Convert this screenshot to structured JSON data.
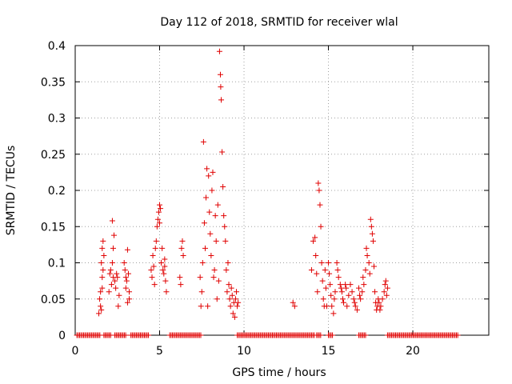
{
  "colors": {
    "series": "#e00000",
    "grid": "#a0a0a0",
    "axis": "#000000"
  },
  "chart_data": {
    "type": "scatter",
    "title": "Day 112 of 2018, SRMTID for receiver wlal",
    "xlabel": "GPS time / hours",
    "ylabel": "SRMTID / TECUs",
    "xlim": [
      0,
      24.5
    ],
    "ylim": [
      0,
      0.4
    ],
    "xticks": [
      0,
      5,
      10,
      15,
      20
    ],
    "xtick_labels": [
      "0",
      "5",
      "10",
      "15",
      "20"
    ],
    "yticks": [
      0,
      0.05,
      0.1,
      0.15,
      0.2,
      0.25,
      0.3,
      0.35,
      0.4
    ],
    "ytick_labels": [
      "0",
      "0.05",
      "0.1",
      "0.15",
      "0.2",
      "0.25",
      "0.3",
      "0.35",
      "0.4"
    ],
    "grid": true,
    "marker": "+",
    "series": [
      {
        "name": "SRMTID",
        "points": [
          [
            1.4,
            0.03
          ],
          [
            1.45,
            0.05
          ],
          [
            1.5,
            0.04
          ],
          [
            1.55,
            0.035
          ],
          [
            1.5,
            0.06
          ],
          [
            1.6,
            0.08
          ],
          [
            1.55,
            0.1
          ],
          [
            1.6,
            0.12
          ],
          [
            1.65,
            0.13
          ],
          [
            1.65,
            0.09
          ],
          [
            1.7,
            0.11
          ],
          [
            1.6,
            0.065
          ],
          [
            2.0,
            0.06
          ],
          [
            2.05,
            0.085
          ],
          [
            2.1,
            0.09
          ],
          [
            2.15,
            0.07
          ],
          [
            2.2,
            0.1
          ],
          [
            2.25,
            0.12
          ],
          [
            2.2,
            0.158
          ],
          [
            2.3,
            0.138
          ],
          [
            2.25,
            0.08
          ],
          [
            2.35,
            0.075
          ],
          [
            2.4,
            0.065
          ],
          [
            2.45,
            0.085
          ],
          [
            2.5,
            0.08
          ],
          [
            2.55,
            0.04
          ],
          [
            2.6,
            0.055
          ],
          [
            2.9,
            0.1
          ],
          [
            2.95,
            0.09
          ],
          [
            3.0,
            0.08
          ],
          [
            3.05,
            0.075
          ],
          [
            3.1,
            0.118
          ],
          [
            3.0,
            0.065
          ],
          [
            3.15,
            0.085
          ],
          [
            3.2,
            0.06
          ],
          [
            3.1,
            0.045
          ],
          [
            3.2,
            0.05
          ],
          [
            4.5,
            0.09
          ],
          [
            4.55,
            0.08
          ],
          [
            4.6,
            0.11
          ],
          [
            4.65,
            0.095
          ],
          [
            4.7,
            0.07
          ],
          [
            4.75,
            0.12
          ],
          [
            4.8,
            0.13
          ],
          [
            4.85,
            0.15
          ],
          [
            4.9,
            0.16
          ],
          [
            4.95,
            0.17
          ],
          [
            5.0,
            0.18
          ],
          [
            5.05,
            0.175
          ],
          [
            5.0,
            0.155
          ],
          [
            5.1,
            0.1
          ],
          [
            5.15,
            0.12
          ],
          [
            5.2,
            0.09
          ],
          [
            5.25,
            0.085
          ],
          [
            5.3,
            0.095
          ],
          [
            5.35,
            0.075
          ],
          [
            5.4,
            0.06
          ],
          [
            5.3,
            0.105
          ],
          [
            6.2,
            0.08
          ],
          [
            6.25,
            0.07
          ],
          [
            6.3,
            0.12
          ],
          [
            6.35,
            0.13
          ],
          [
            6.4,
            0.11
          ],
          [
            7.4,
            0.08
          ],
          [
            7.45,
            0.04
          ],
          [
            7.5,
            0.06
          ],
          [
            7.55,
            0.1
          ],
          [
            7.6,
            0.267
          ],
          [
            7.65,
            0.155
          ],
          [
            7.7,
            0.12
          ],
          [
            7.75,
            0.19
          ],
          [
            7.8,
            0.23
          ],
          [
            7.85,
            0.04
          ],
          [
            7.9,
            0.22
          ],
          [
            7.95,
            0.17
          ],
          [
            8.0,
            0.14
          ],
          [
            8.05,
            0.11
          ],
          [
            8.1,
            0.2
          ],
          [
            8.15,
            0.225
          ],
          [
            8.2,
            0.08
          ],
          [
            8.25,
            0.09
          ],
          [
            8.3,
            0.165
          ],
          [
            8.35,
            0.13
          ],
          [
            8.4,
            0.05
          ],
          [
            8.45,
            0.18
          ],
          [
            8.5,
            0.075
          ],
          [
            8.55,
            0.392
          ],
          [
            8.6,
            0.36
          ],
          [
            8.62,
            0.343
          ],
          [
            8.65,
            0.325
          ],
          [
            8.7,
            0.253
          ],
          [
            8.75,
            0.205
          ],
          [
            8.8,
            0.165
          ],
          [
            8.85,
            0.15
          ],
          [
            8.9,
            0.13
          ],
          [
            8.95,
            0.09
          ],
          [
            9.0,
            0.06
          ],
          [
            9.05,
            0.1
          ],
          [
            9.1,
            0.07
          ],
          [
            9.15,
            0.05
          ],
          [
            9.2,
            0.04
          ],
          [
            9.25,
            0.065
          ],
          [
            9.3,
            0.055
          ],
          [
            9.35,
            0.03
          ],
          [
            9.4,
            0.045
          ],
          [
            9.45,
            0.025
          ],
          [
            9.5,
            0.05
          ],
          [
            9.55,
            0.06
          ],
          [
            9.6,
            0.04
          ],
          [
            9.65,
            0.045
          ],
          [
            12.9,
            0.045
          ],
          [
            13.0,
            0.04
          ],
          [
            14.0,
            0.09
          ],
          [
            14.1,
            0.13
          ],
          [
            14.2,
            0.135
          ],
          [
            14.25,
            0.11
          ],
          [
            14.3,
            0.085
          ],
          [
            14.35,
            0.06
          ],
          [
            14.4,
            0.21
          ],
          [
            14.45,
            0.2
          ],
          [
            14.5,
            0.18
          ],
          [
            14.55,
            0.15
          ],
          [
            14.6,
            0.1
          ],
          [
            14.65,
            0.075
          ],
          [
            14.7,
            0.05
          ],
          [
            14.75,
            0.04
          ],
          [
            14.8,
            0.09
          ],
          [
            14.85,
            0.065
          ],
          [
            14.9,
            0.04
          ],
          [
            15.0,
            0.1
          ],
          [
            15.05,
            0.085
          ],
          [
            15.1,
            0.07
          ],
          [
            15.15,
            0.055
          ],
          [
            15.2,
            0.04
          ],
          [
            15.3,
            0.03
          ],
          [
            15.35,
            0.05
          ],
          [
            15.4,
            0.06
          ],
          [
            15.5,
            0.1
          ],
          [
            15.55,
            0.09
          ],
          [
            15.6,
            0.08
          ],
          [
            15.7,
            0.07
          ],
          [
            15.75,
            0.065
          ],
          [
            15.8,
            0.06
          ],
          [
            15.85,
            0.05
          ],
          [
            15.9,
            0.045
          ],
          [
            16.0,
            0.07
          ],
          [
            16.05,
            0.065
          ],
          [
            16.1,
            0.04
          ],
          [
            16.2,
            0.055
          ],
          [
            16.3,
            0.07
          ],
          [
            16.4,
            0.06
          ],
          [
            16.5,
            0.05
          ],
          [
            16.55,
            0.045
          ],
          [
            16.6,
            0.04
          ],
          [
            16.7,
            0.035
          ],
          [
            16.8,
            0.065
          ],
          [
            16.85,
            0.055
          ],
          [
            16.9,
            0.05
          ],
          [
            17.0,
            0.06
          ],
          [
            17.05,
            0.08
          ],
          [
            17.1,
            0.07
          ],
          [
            17.2,
            0.09
          ],
          [
            17.25,
            0.12
          ],
          [
            17.3,
            0.11
          ],
          [
            17.4,
            0.1
          ],
          [
            17.45,
            0.085
          ],
          [
            17.5,
            0.16
          ],
          [
            17.55,
            0.15
          ],
          [
            17.6,
            0.14
          ],
          [
            17.65,
            0.13
          ],
          [
            17.7,
            0.095
          ],
          [
            17.75,
            0.06
          ],
          [
            17.8,
            0.045
          ],
          [
            17.85,
            0.035
          ],
          [
            17.9,
            0.04
          ],
          [
            17.95,
            0.05
          ],
          [
            18.0,
            0.045
          ],
          [
            18.05,
            0.035
          ],
          [
            18.1,
            0.04
          ],
          [
            18.2,
            0.05
          ],
          [
            18.3,
            0.06
          ],
          [
            18.35,
            0.07
          ],
          [
            18.4,
            0.075
          ],
          [
            18.45,
            0.055
          ],
          [
            18.5,
            0.065
          ]
        ],
        "zero_segments": [
          [
            0.1,
            1.5
          ],
          [
            1.7,
            2.1
          ],
          [
            2.35,
            3.0
          ],
          [
            3.3,
            4.4
          ],
          [
            5.6,
            7.5
          ],
          [
            9.6,
            14.2
          ],
          [
            14.3,
            14.6
          ],
          [
            15.0,
            15.3
          ],
          [
            16.8,
            17.2
          ],
          [
            18.5,
            22.7
          ]
        ]
      }
    ]
  }
}
